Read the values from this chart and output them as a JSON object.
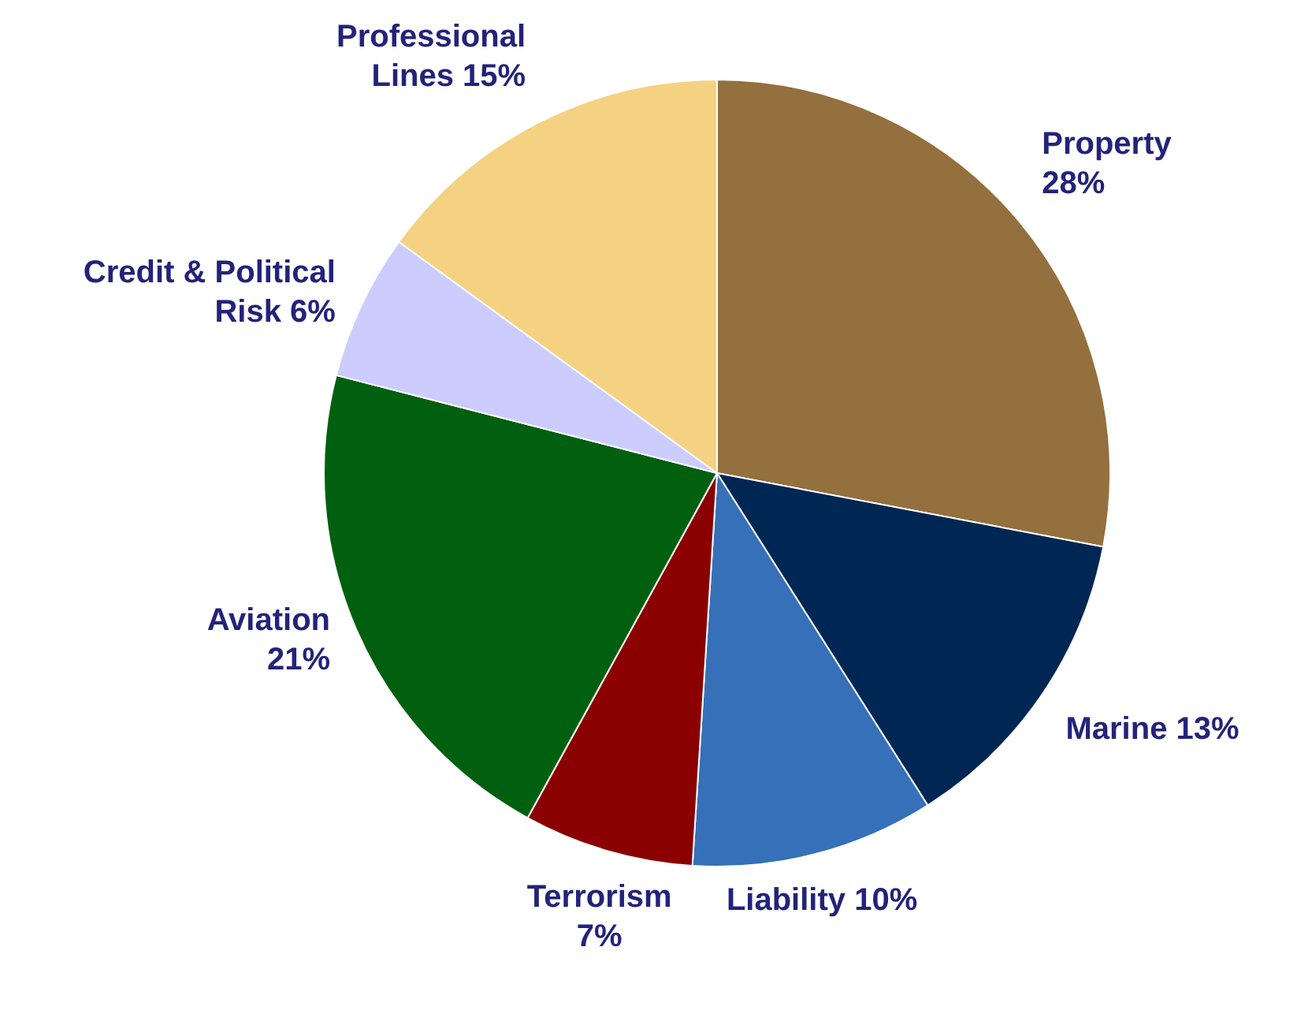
{
  "chart_data": {
    "type": "pie",
    "categories": [
      "Property",
      "Marine",
      "Liability",
      "Terrorism",
      "Aviation",
      "Credit & Political Risk",
      "Professional Lines"
    ],
    "values": [
      28,
      13,
      10,
      7,
      21,
      6,
      15
    ],
    "value_labels": [
      "28%",
      "13%",
      "10%",
      "7%",
      "21%",
      "6%",
      "15%"
    ],
    "colors": [
      "#94703e",
      "#002654",
      "#3670b8",
      "#8b0000",
      "#006010",
      "#ccccff",
      "#f5d282"
    ],
    "legend": false
  }
}
